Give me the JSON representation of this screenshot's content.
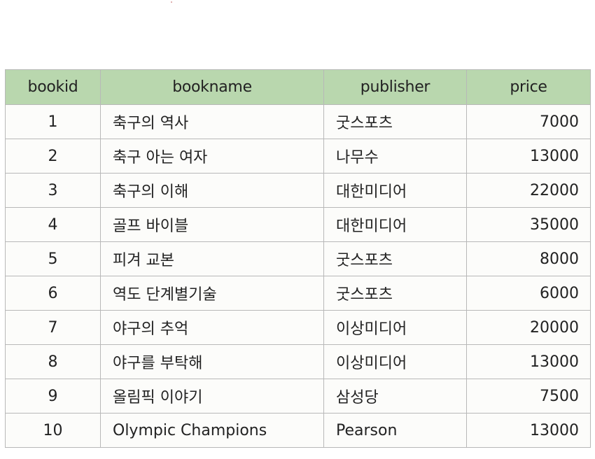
{
  "table": {
    "headers": [
      "bookid",
      "bookname",
      "publisher",
      "price"
    ],
    "rows": [
      [
        "1",
        "축구의 역사",
        "굿스포츠",
        "7000"
      ],
      [
        "2",
        "축구 아는 여자",
        "나무수",
        "13000"
      ],
      [
        "3",
        "축구의 이해",
        "대한미디어",
        "22000"
      ],
      [
        "4",
        "골프 바이블",
        "대한미디어",
        "35000"
      ],
      [
        "5",
        "피겨 교본",
        "굿스포츠",
        "8000"
      ],
      [
        "6",
        "역도 단계별기술",
        "굿스포츠",
        "6000"
      ],
      [
        "7",
        "야구의 추억",
        "이상미디어",
        "20000"
      ],
      [
        "8",
        "야구를 부탁해",
        "이상미디어",
        "13000"
      ],
      [
        "9",
        "올림픽 이야기",
        "삼성당",
        "7500"
      ],
      [
        "10",
        "Olympic Champions",
        "Pearson",
        "13000"
      ]
    ]
  },
  "colors": {
    "header_bg": "#b9d7ae",
    "border": "#b8b8b8",
    "text": "#222222"
  }
}
